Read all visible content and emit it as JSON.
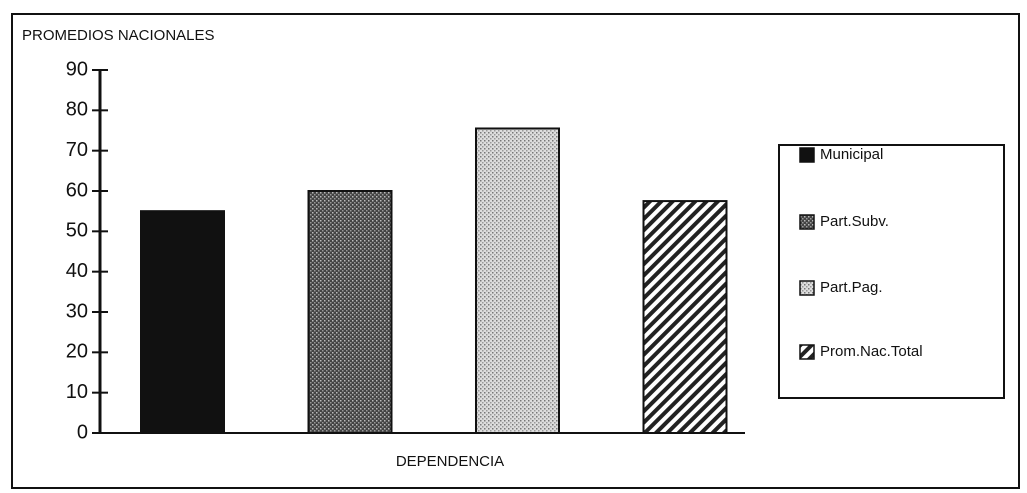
{
  "chart_data": {
    "type": "bar",
    "title": "PROMEDIOS NACIONALES",
    "x_label": "DEPENDENCIA",
    "series": [
      {
        "name": "Municipal",
        "color": "#111111",
        "pattern": "solid",
        "values": [
          55
        ]
      },
      {
        "name": "Part.Subv.",
        "color": "#555555",
        "pattern": "dots-dark",
        "values": [
          60
        ]
      },
      {
        "name": "Part.Pag.",
        "color": "#bbbbbb",
        "pattern": "dots-light",
        "values": [
          75.5
        ]
      },
      {
        "name": "Prom.Nac.Total",
        "color": "#222222",
        "pattern": "hatch",
        "values": [
          57.5
        ]
      }
    ],
    "ylim": [
      0,
      90
    ],
    "yticks": [
      0,
      10,
      20,
      30,
      40,
      50,
      60,
      70,
      80,
      90
    ],
    "legend": "right"
  }
}
